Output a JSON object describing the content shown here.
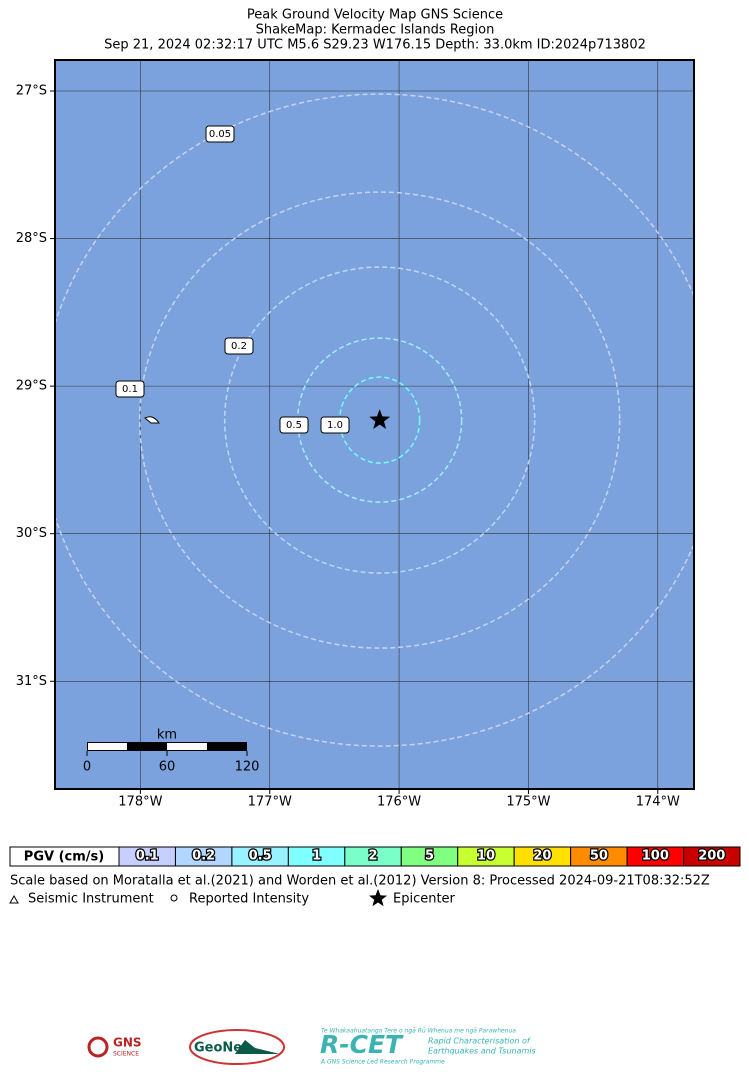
{
  "header": {
    "lines": [
      "Peak Ground Velocity Map GNS Science",
      "ShakeMap: Kermadec Islands Region",
      "Sep 21, 2024 02:32:17 UTC M5.6 S29.23 W176.15 Depth: 33.0km ID:2024p713802"
    ]
  },
  "map": {
    "lonlim": [
      -178.66,
      -173.72
    ],
    "latlim": [
      -31.73,
      -26.79
    ],
    "lon_ticks": [
      {
        "value": -178,
        "label": "178°W"
      },
      {
        "value": -177,
        "label": "177°W"
      },
      {
        "value": -176,
        "label": "176°W"
      },
      {
        "value": -175,
        "label": "175°W"
      },
      {
        "value": -174,
        "label": "174°W"
      }
    ],
    "lat_ticks": [
      {
        "value": -27,
        "label": "27°S"
      },
      {
        "value": -28,
        "label": "28°S"
      },
      {
        "value": -29,
        "label": "29°S"
      },
      {
        "value": -30,
        "label": "30°S"
      },
      {
        "value": -31,
        "label": "31°S"
      }
    ],
    "epicenter": {
      "lon": -176.15,
      "lat": -29.23
    },
    "contours": [
      0.05,
      0.1,
      0.2,
      0.5,
      {
        "value": 1,
        "label": "1.0"
      }
    ],
    "scale_bar": {
      "unit": "km",
      "labels": [
        0,
        60,
        120
      ]
    }
  },
  "legend": {
    "title": "PGV (cm/s)",
    "items": [
      {
        "label": 0.1,
        "color": "#c6cfff"
      },
      {
        "label": 0.2,
        "color": "#b3d6ff"
      },
      {
        "label": 0.5,
        "color": "#99f2ff"
      },
      {
        "label": 1,
        "color": "#80ffff"
      },
      {
        "label": 2,
        "color": "#7affc8"
      },
      {
        "label": 5,
        "color": "#80ff80"
      },
      {
        "label": 10,
        "color": "#c8ff30"
      },
      {
        "label": 20,
        "color": "#ffe000"
      },
      {
        "label": 50,
        "color": "#ff8c00"
      },
      {
        "label": 100,
        "color": "#ff0000"
      },
      {
        "label": 200,
        "color": "#c80000"
      }
    ],
    "note": "Scale based on Moratalla et al.(2021) and Worden et al.(2012)   Version 8: Processed 2024-09-21T08:32:52Z",
    "symbols": [
      "Seismic Instrument",
      "Reported Intensity",
      "Epicenter"
    ]
  },
  "logos": {
    "gns": "GNS",
    "gns_sub": "SCIENCE",
    "geonet": "GeoNet",
    "rcet": "R-CET",
    "rcet_top": "Te Whakaahuatanga Tere o ngā Rū Whenua me ngā Parawhenua",
    "rcet_sub1": "Rapid Characterisation of",
    "rcet_sub2": "Earthquakes and Tsunamis",
    "rcet_bottom": "A GNS Science Led Research Programme"
  }
}
